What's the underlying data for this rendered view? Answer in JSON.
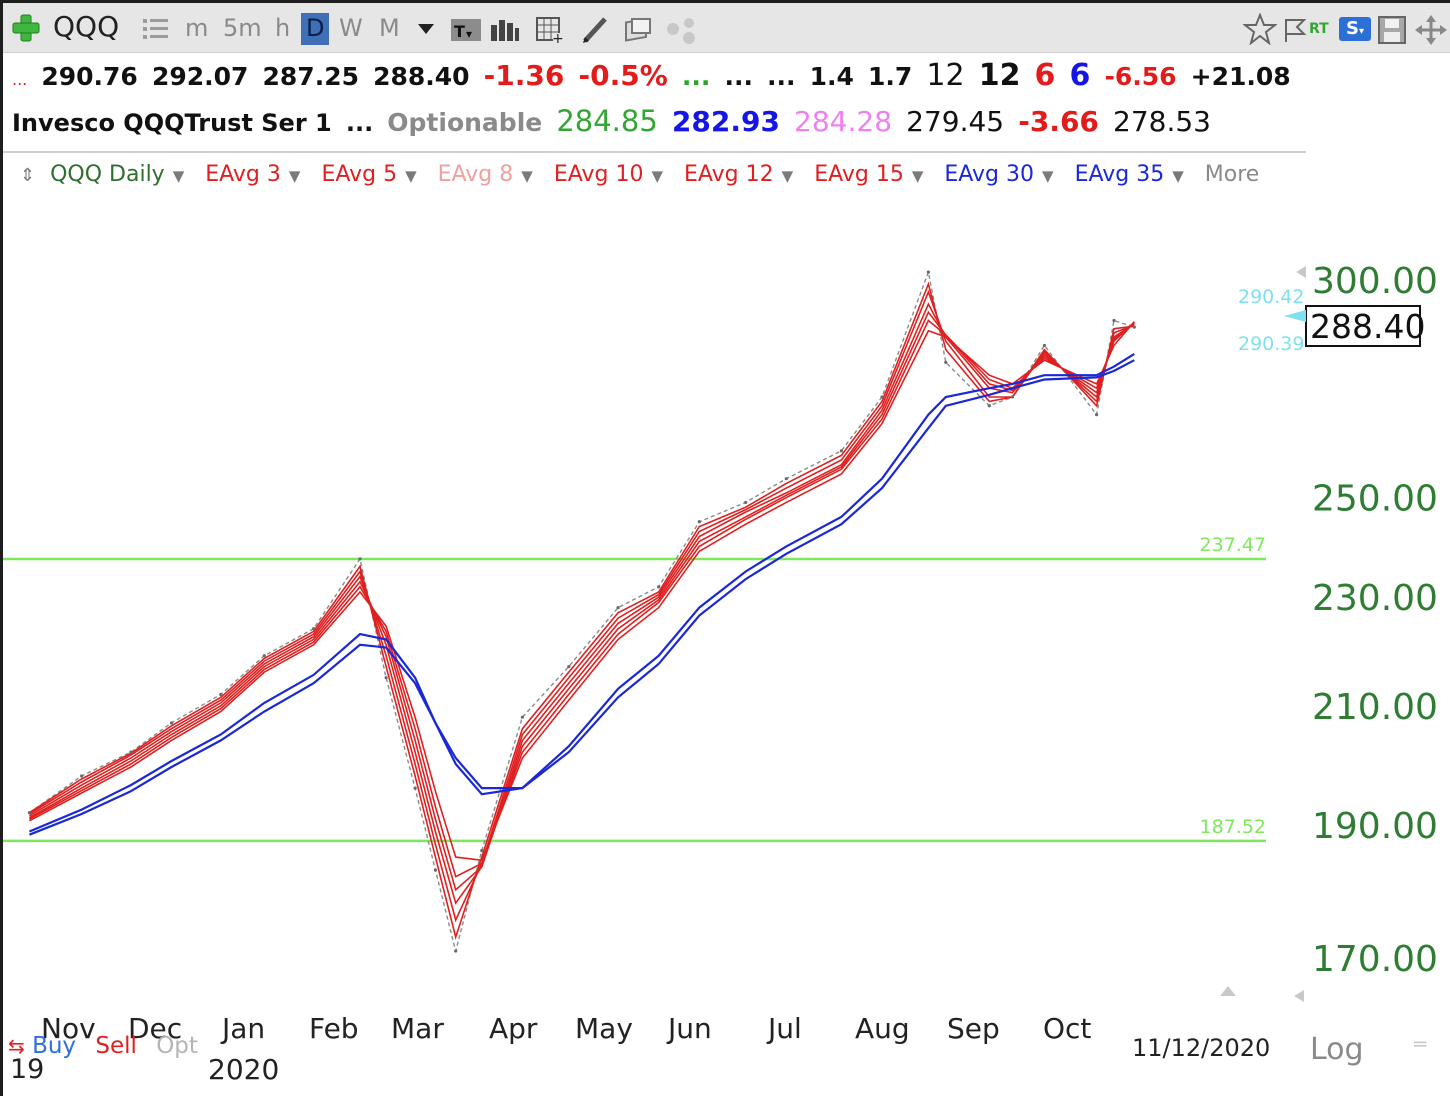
{
  "toolbar": {
    "symbol": "QQQ",
    "timeframes": [
      "m",
      "5m",
      "h",
      "D",
      "W",
      "M"
    ],
    "active_timeframe": "D",
    "rt_label": "RT",
    "s_label": "S"
  },
  "quote_line1": {
    "prefix": "...",
    "open": "290.76",
    "high": "292.07",
    "low": "287.25",
    "last": "288.40",
    "change": "-1.36",
    "change_pct": "-0.5%",
    "dots_green": "...",
    "dots1": "...",
    "dots2": "...",
    "v1": "1.4",
    "v2": "1.7",
    "v3": "12",
    "v4": "12",
    "v5": "6",
    "v6": "6",
    "v7": "-6.56",
    "v8": "+21.08"
  },
  "quote_line2": {
    "name": "Invesco QQQTrust Ser 1",
    "dots": "...",
    "optionable": "Optionable",
    "p1": "284.85",
    "p2": "282.93",
    "p3": "284.28",
    "p4": "279.45",
    "p5": "-3.66",
    "p6": "278.53"
  },
  "legend": {
    "main": "QQQ Daily",
    "items": [
      "EAvg 3",
      "EAvg 5",
      "EAvg 8",
      "EAvg 10",
      "EAvg 12",
      "EAvg 15",
      "EAvg 30",
      "EAvg 35"
    ],
    "more": "More"
  },
  "bottom": {
    "buy": "Buy",
    "sell": "Sell",
    "opt": "Opt",
    "year_start": "19",
    "year": "2020",
    "date": "11/12/2020",
    "log": "Log"
  },
  "colors": {
    "short_avg": "#e02020",
    "long_avg": "#1a28d8",
    "hline": "#7ee85c",
    "yaxis": "#2e7d32",
    "cyan": "#7ee0f0"
  },
  "chart_data": {
    "type": "line",
    "title": "QQQ Daily",
    "scale": "log",
    "ylim": [
      162,
      310
    ],
    "yticks": [
      "300.00",
      "250.00",
      "230.00",
      "210.00",
      "190.00",
      "170.00"
    ],
    "ytick_values": [
      300,
      250,
      230,
      210,
      190,
      170
    ],
    "xticks": [
      "Nov",
      "Dec",
      "Jan",
      "Feb",
      "Mar",
      "Apr",
      "May",
      "Jun",
      "Jul",
      "Aug",
      "Sep",
      "Oct"
    ],
    "last_price_label": "288.40",
    "markers": [
      "290.42",
      "290.39"
    ],
    "hlines": [
      {
        "label": "237.47",
        "value": 237.47
      },
      {
        "label": "187.52",
        "value": 187.52
      }
    ],
    "x": [
      "2019-10-28",
      "2019-11-15",
      "2019-12-02",
      "2019-12-16",
      "2020-01-02",
      "2020-01-17",
      "2020-02-03",
      "2020-02-19",
      "2020-02-28",
      "2020-03-09",
      "2020-03-16",
      "2020-03-23",
      "2020-04-01",
      "2020-04-15",
      "2020-05-01",
      "2020-05-18",
      "2020-06-01",
      "2020-06-15",
      "2020-07-01",
      "2020-07-15",
      "2020-08-03",
      "2020-08-17",
      "2020-09-02",
      "2020-09-08",
      "2020-09-23",
      "2020-10-01",
      "2020-10-12",
      "2020-10-30",
      "2020-11-05",
      "2020-11-12"
    ],
    "close": [
      192,
      198,
      202,
      207,
      212,
      219,
      224,
      237.5,
      215,
      196,
      183,
      171,
      186,
      208,
      217,
      228,
      232,
      245,
      249,
      254,
      260,
      272,
      302,
      280,
      270,
      272,
      284,
      268,
      290,
      288.4
    ],
    "series": [
      {
        "name": "EAvg 3",
        "values": [
          192,
          197.5,
          201.8,
          206.5,
          211.5,
          218.5,
          223.5,
          236,
          217,
          198,
          185,
          173,
          185,
          206,
          216,
          227,
          231,
          244,
          248,
          253,
          259,
          271,
          299,
          283,
          271,
          272,
          283,
          270,
          288,
          288.6
        ]
      },
      {
        "name": "EAvg 5",
        "values": [
          191.8,
          197,
          201.5,
          206,
          211,
          218,
          223,
          235,
          219,
          200,
          187,
          175.5,
          184,
          205,
          215,
          226,
          230.5,
          243,
          247.5,
          252,
          258,
          270,
          297,
          285,
          272,
          272,
          282.5,
          271,
          287,
          288.9
        ]
      },
      {
        "name": "EAvg 8",
        "values": [
          191.5,
          196.5,
          201,
          205.5,
          210.5,
          217.5,
          222.5,
          234,
          221,
          202,
          189,
          178,
          183.5,
          204,
          214,
          225,
          230,
          242,
          247,
          251,
          257,
          269,
          294,
          286,
          274,
          273,
          282,
          272,
          286,
          289.2
        ]
      },
      {
        "name": "EAvg 10",
        "values": [
          191.2,
          196,
          200.5,
          205,
          210,
          217,
          222,
          233,
          222.5,
          204,
          191,
          180,
          183.5,
          203,
          213,
          224,
          229.5,
          241,
          246,
          250.5,
          256.5,
          268,
          292,
          286.5,
          275,
          273.5,
          281.5,
          273,
          285.5,
          289.4
        ]
      },
      {
        "name": "EAvg 12",
        "values": [
          191,
          195.6,
          200,
          204.5,
          209.5,
          216.5,
          221.5,
          232,
          223.5,
          206,
          193,
          182,
          184,
          202,
          212,
          223,
          229,
          240,
          245.5,
          250,
          256,
          267,
          290,
          286.5,
          276,
          274,
          281,
          274,
          285,
          289.6
        ]
      },
      {
        "name": "EAvg 15",
        "values": [
          190.7,
          195.2,
          199.5,
          204,
          209,
          216,
          221,
          231,
          224.5,
          208,
          195.5,
          185,
          184.5,
          201,
          211,
          222,
          228,
          239,
          244.5,
          249,
          255,
          266,
          287.5,
          286,
          277,
          275,
          280.5,
          275,
          284,
          289.7
        ]
      },
      {
        "name": "EAvg 30",
        "values": [
          189,
          192.5,
          196.5,
          200.5,
          205,
          210.5,
          215.5,
          223,
          222,
          215,
          207,
          200,
          195,
          196,
          203,
          213,
          219,
          228,
          235,
          240,
          246,
          254,
          268,
          272,
          274,
          275,
          277,
          277,
          279,
          282
        ]
      },
      {
        "name": "EAvg 35",
        "values": [
          188.5,
          191.8,
          195.5,
          199.5,
          204,
          209,
          214,
          221,
          220.5,
          214,
          207,
          201,
          196,
          196,
          202,
          211.5,
          217.5,
          226.5,
          233.5,
          238.5,
          244.5,
          252,
          265,
          270,
          272.5,
          274,
          276,
          276.5,
          278,
          280.5
        ]
      }
    ]
  }
}
